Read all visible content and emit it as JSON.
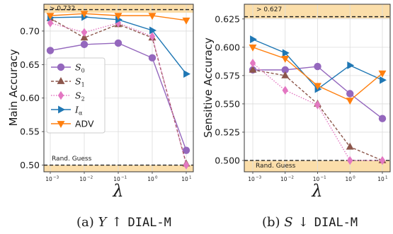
{
  "chart_data": [
    {
      "type": "line",
      "x": [
        0.001,
        0.01,
        0.1,
        1,
        10
      ],
      "x_tick_labels": [
        "10",
        "10",
        "10",
        "10",
        "10"
      ],
      "x_tick_exponents": [
        "−3",
        "−2",
        "−1",
        "0",
        "1"
      ],
      "xlabel": "λ",
      "xscale": "log",
      "ylabel": "Main Accuracy",
      "ylim": [
        0.49,
        0.74
      ],
      "y_ticks": [
        0.5,
        0.55,
        0.6,
        0.65,
        0.7
      ],
      "y_tick_labels": [
        "0.50",
        "0.55",
        "0.60",
        "0.65",
        "0.70"
      ],
      "grid": true,
      "top_band_label": "> 0.732",
      "top_line": 0.732,
      "bottom_band_label": "Rand. Guess",
      "bottom_line": 0.5,
      "legend_position": "center-left",
      "series": [
        {
          "name": "S_0",
          "legend_text": "S",
          "legend_sub": "0",
          "color": "#9467bd",
          "marker": "circle",
          "dash": "solid",
          "values": [
            0.671,
            0.68,
            0.682,
            0.66,
            0.522
          ]
        },
        {
          "name": "S_1",
          "legend_text": "S",
          "legend_sub": "1",
          "color": "#8c564b",
          "marker": "triangle-up",
          "dash": "dashed",
          "values": [
            0.719,
            0.69,
            0.71,
            0.69,
            0.502
          ]
        },
        {
          "name": "S_2",
          "legend_text": "S",
          "legend_sub": "2",
          "color": "#e377c2",
          "marker": "diamond",
          "dash": "dotted",
          "values": [
            0.712,
            0.698,
            0.712,
            0.692,
            0.5
          ]
        },
        {
          "name": "I_α",
          "legend_text": "I",
          "legend_sub": "α",
          "color": "#1f77b4",
          "marker": "triangle-right",
          "dash": "solid",
          "values": [
            0.72,
            0.721,
            0.717,
            0.701,
            0.636
          ]
        },
        {
          "name": "ADV",
          "legend_text": "ADV",
          "legend_sub": "",
          "color": "#ff7f0e",
          "marker": "triangle-down",
          "dash": "solid",
          "values": [
            0.723,
            0.726,
            0.723,
            0.723,
            0.716
          ]
        }
      ],
      "caption": {
        "prefix": "(a) ",
        "var": "Y",
        "arrow": "↑",
        "method": "DIAL-M"
      }
    },
    {
      "type": "line",
      "x": [
        0.001,
        0.01,
        0.1,
        1,
        10
      ],
      "x_tick_labels": [
        "10",
        "10",
        "10",
        "10",
        "10"
      ],
      "x_tick_exponents": [
        "−3",
        "−2",
        "−1",
        "0",
        "1"
      ],
      "xlabel": "λ",
      "xscale": "log",
      "ylabel": "Sensitive Accuracy",
      "ylim": [
        0.49,
        0.638
      ],
      "y_ticks": [
        0.5,
        0.525,
        0.55,
        0.575,
        0.6,
        0.625
      ],
      "y_tick_labels": [
        "0.500",
        "0.525",
        "0.550",
        "0.575",
        "0.600",
        "0.625"
      ],
      "grid": true,
      "top_band_label": "> 0.627",
      "top_line": 0.627,
      "bottom_band_label": "Rand. Guess",
      "bottom_line": 0.5,
      "series": [
        {
          "name": "S_0",
          "color": "#9467bd",
          "marker": "circle",
          "dash": "solid",
          "values": [
            0.58,
            0.58,
            0.583,
            0.559,
            0.537
          ]
        },
        {
          "name": "S_1",
          "color": "#8c564b",
          "marker": "triangle-up",
          "dash": "dashed",
          "values": [
            0.58,
            0.575,
            0.55,
            0.512,
            0.5
          ]
        },
        {
          "name": "S_2",
          "color": "#e377c2",
          "marker": "diamond",
          "dash": "dotted",
          "values": [
            0.586,
            0.562,
            0.549,
            0.5,
            0.5
          ]
        },
        {
          "name": "I_α",
          "color": "#1f77b4",
          "marker": "triangle-right",
          "dash": "solid",
          "values": [
            0.607,
            0.595,
            0.563,
            0.584,
            0.571
          ]
        },
        {
          "name": "ADV",
          "color": "#ff7f0e",
          "marker": "triangle-down",
          "dash": "solid",
          "values": [
            0.6,
            0.59,
            0.566,
            0.553,
            0.577
          ]
        }
      ],
      "caption": {
        "prefix": "(b) ",
        "var": "S",
        "arrow": "↓",
        "method": "DIAL-M"
      }
    }
  ],
  "style": {
    "band_color": "#fbdeaa",
    "grid_color": "#dcdcdc",
    "ref_line_color": "#222222"
  }
}
